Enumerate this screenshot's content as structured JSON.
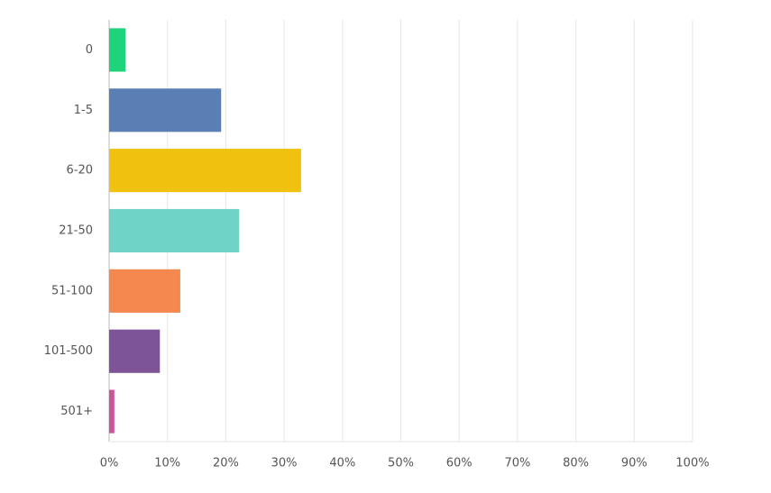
{
  "chart_data": {
    "type": "hbar",
    "categories": [
      "0",
      "1-5",
      "6-20",
      "21-50",
      "51-100",
      "101-500",
      "501+"
    ],
    "values": [
      2.8,
      19.2,
      32.9,
      22.3,
      12.2,
      8.7,
      0.9
    ],
    "colors": [
      "#1ed47a",
      "#5a7fb5",
      "#f0c20f",
      "#6fd3c8",
      "#f4884f",
      "#7d5497",
      "#c9549a"
    ],
    "xlim": [
      0,
      100
    ],
    "xticks": [
      {
        "value": 0,
        "label": "0%"
      },
      {
        "value": 10,
        "label": "10%"
      },
      {
        "value": 20,
        "label": "20%"
      },
      {
        "value": 30,
        "label": "30%"
      },
      {
        "value": 40,
        "label": "40%"
      },
      {
        "value": 50,
        "label": "50%"
      },
      {
        "value": 60,
        "label": "60%"
      },
      {
        "value": 70,
        "label": "70%"
      },
      {
        "value": 80,
        "label": "80%"
      },
      {
        "value": 90,
        "label": "90%"
      },
      {
        "value": 100,
        "label": "100%"
      }
    ],
    "grid": true
  }
}
